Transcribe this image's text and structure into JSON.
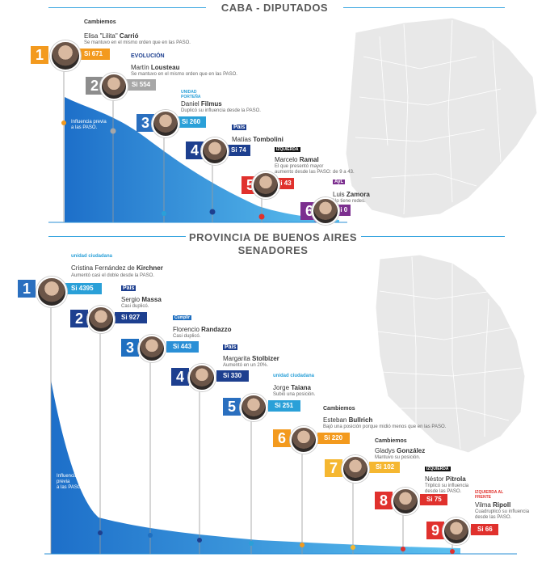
{
  "sections": {
    "caba": {
      "title": "CABA - DIPUTADOS",
      "influence_note": "Influencia previa\na las PASO.",
      "candidates": [
        {
          "rank": "1",
          "first": "Elisa \"Lilita\" ",
          "last": "Carrió",
          "party": "Cambiemos",
          "desc": "Se mantuvo en el mismo orden que en las PASO.",
          "votes": "Si 671",
          "color": "#f39a1e"
        },
        {
          "rank": "2",
          "first": "Martín ",
          "last": "Lousteau",
          "party": "EVOLUCIÓN",
          "desc": "Se mantuvo en el mismo orden que en las PASO.",
          "votes": "Si 554",
          "color": "#a7a7a7"
        },
        {
          "rank": "3",
          "first": "Daniel ",
          "last": "Filmus",
          "party": "UNIDAD PORTEÑA",
          "desc": "Duplicó su influencia desde la PASO.",
          "votes": "Si 260",
          "color": "#2aa0d8"
        },
        {
          "rank": "4",
          "first": "Matías ",
          "last": "Tombolini",
          "party": "País",
          "desc": "",
          "votes": "Si 74",
          "color": "#1d3f8f"
        },
        {
          "rank": "5",
          "first": "Marcelo ",
          "last": "Ramal",
          "party": "IZQUIERDA",
          "desc": "El que presentó mayor\naumento desde las PASO: de 9 a 43.",
          "votes": "Si 43",
          "color": "#e0312d"
        },
        {
          "rank": "6",
          "first": "Luis ",
          "last": "Zamora",
          "party": "AyL",
          "desc": "No tiene redes.",
          "votes": "Si 0",
          "color": "#7c2f8f"
        }
      ]
    },
    "pba": {
      "title_line1": "PROVINCIA DE BUENOS AIRES",
      "title_line2": "SENADORES",
      "influence_note": "Influencia\nprevia\na las PASO.",
      "candidates": [
        {
          "rank": "1",
          "first": "Cristina Fernández de ",
          "last": "Kirchner",
          "party": "unidad ciudadana",
          "desc": "Aumentó casi el doble desde la PASO.",
          "votes": "Si 4395",
          "color": "#2aa0d8"
        },
        {
          "rank": "2",
          "first": "Sergio ",
          "last": "Massa",
          "party": "País",
          "desc": "Casi duplicó.",
          "votes": "Si 927",
          "color": "#1d3f8f"
        },
        {
          "rank": "3",
          "first": "Florencio ",
          "last": "Randazzo",
          "party": "Cumplir",
          "desc": "Casi duplicó.",
          "votes": "Si 443",
          "color": "#1f6fc0"
        },
        {
          "rank": "4",
          "first": "Margarita ",
          "last": "Stolbizer",
          "party": "País",
          "desc": "Aumentó en un 20%.",
          "votes": "Si 330",
          "color": "#1d3f8f"
        },
        {
          "rank": "5",
          "first": "Jorge ",
          "last": "Taiana",
          "party": "unidad ciudadana",
          "desc": "Subió una posición.",
          "votes": "Si 251",
          "color": "#2aa0d8"
        },
        {
          "rank": "6",
          "first": "Esteban ",
          "last": "Bullrich",
          "party": "Cambiemos",
          "desc": "Bajó una posición porque midió menos que en las PASO.",
          "votes": "Si 220",
          "color": "#f39a1e"
        },
        {
          "rank": "7",
          "first": "Gladys ",
          "last": "González",
          "party": "Cambiemos",
          "desc": "Mantuvo su posición.",
          "votes": "Si 102",
          "color": "#f5b731"
        },
        {
          "rank": "8",
          "first": "Néstor ",
          "last": "Pitrola",
          "party": "IZQUIERDA",
          "desc": "Triplicó su influencia\ndesde las PASO.",
          "votes": "Si 75",
          "color": "#e0312d"
        },
        {
          "rank": "9",
          "first": "Vilma ",
          "last": "Ripoll",
          "party": "IZQUIERDA AL FRENTE",
          "desc": "Cuadruplicó su influencia\ndesde las PASO.",
          "votes": "Si 66",
          "color": "#e0312d"
        }
      ]
    }
  },
  "colors": {
    "accent": "#2a8fd6",
    "area": "#1f7cd1",
    "map": "#e8e8e8"
  }
}
